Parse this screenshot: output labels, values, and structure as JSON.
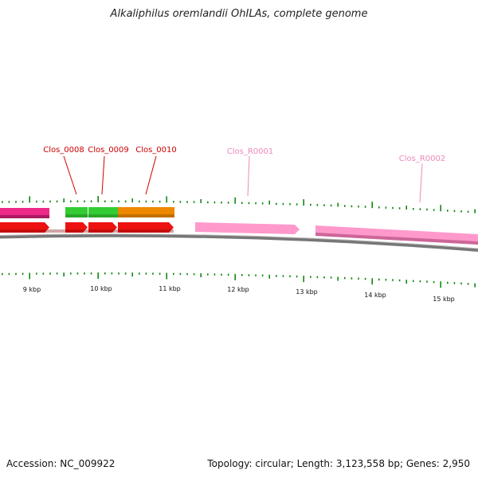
{
  "title": "Alkaliphilus oremlandii OhILAs, complete genome",
  "accession_text": "Accession: NC_009922",
  "summary_text": "Topology: circular; Length: 3,123,558 bp; Genes: 2,950",
  "colors": {
    "cds": "#ee1111",
    "rrna": "#ff99cc",
    "rrna_dark": "#cc6699",
    "magenta": "#ee2a88",
    "green": "#33cc33",
    "orange": "#ee8800",
    "gc_tick": "#118811",
    "backbone": "#888888",
    "label_cds": "#cc0000",
    "label_rrna": "#ee88bb"
  },
  "gene_labels": [
    {
      "name": "Clos_0008",
      "type": "cds"
    },
    {
      "name": "Clos_0009",
      "type": "cds"
    },
    {
      "name": "Clos_0010",
      "type": "cds"
    },
    {
      "name": "Clos_R0001",
      "type": "rrna"
    },
    {
      "name": "Clos_R0002",
      "type": "rrna"
    }
  ],
  "scale_labels": [
    "9 kbp",
    "10 kbp",
    "11 kbp",
    "12 kbp",
    "13 kbp",
    "14 kbp",
    "15 kbp"
  ]
}
